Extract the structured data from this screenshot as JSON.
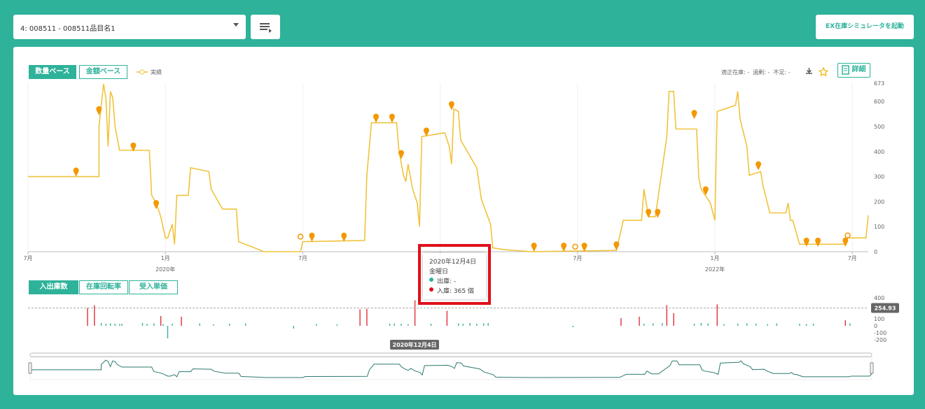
{
  "header": {
    "item_select": "4: 008511 - 008511品目名1",
    "simulator_button": "EX在庫シミュレータを起動"
  },
  "stock_chart": {
    "tabs": [
      "数量ベース",
      "金額ベース"
    ],
    "stats": "適正在庫: -  過剰: -  不足: -",
    "detail_button": "詳細",
    "chart_data": {
      "type": "line",
      "xlim": [
        0,
        36.7
      ],
      "xticks": [
        {
          "value": 0,
          "label": "7月"
        },
        {
          "value": 6,
          "label": "1月"
        },
        {
          "value": 12,
          "label": "7月"
        },
        {
          "value": 18,
          "label": "1月"
        },
        {
          "value": 24,
          "label": "7月"
        },
        {
          "value": 30,
          "label": "1月"
        },
        {
          "value": 36,
          "label": "7月"
        }
      ],
      "year_labels": [
        {
          "value": 6,
          "label": "2020年"
        },
        {
          "value": 30,
          "label": "2022年"
        }
      ],
      "ylim": [
        0,
        673
      ],
      "yticks": [
        0,
        100,
        200,
        300,
        400,
        500,
        600,
        673
      ],
      "series": [
        {
          "name": "実績",
          "color": "#f0c33c",
          "x": [
            0,
            3.1,
            3.1,
            3.3,
            3.4,
            3.5,
            3.6,
            3.7,
            3.8,
            4.0,
            5.3,
            5.4,
            5.6,
            5.8,
            6.0,
            6.1,
            6.3,
            6.4,
            6.5,
            7.0,
            7.1,
            7.9,
            8.0,
            8.5,
            9.1,
            9.2,
            9.9,
            10.3,
            11.9,
            12.0,
            14.7,
            14.8,
            15.0,
            16.1,
            16.2,
            16.4,
            16.5,
            16.6,
            16.8,
            17.0,
            17.1,
            17.2,
            18.2,
            18.4,
            18.5,
            18.6,
            18.8,
            18.9,
            19.6,
            19.8,
            20.2,
            20.3,
            20.8,
            22.0,
            25.7,
            25.9,
            26.0,
            26.8,
            26.9,
            27.1,
            27.4,
            27.9,
            28.0,
            28.2,
            28.3,
            29.2,
            29.3,
            29.4,
            29.8,
            30.0,
            30.1,
            30.9,
            31.0,
            31.1,
            31.4,
            31.5,
            32.0,
            32.1,
            32.4,
            33.1,
            33.2,
            33.3,
            33.4,
            33.7,
            35.7,
            35.8,
            36.6,
            36.7
          ],
          "values": [
            300,
            300,
            500,
            670,
            615,
            420,
            640,
            615,
            500,
            405,
            405,
            225,
            195,
            140,
            55,
            55,
            110,
            30,
            225,
            225,
            335,
            320,
            250,
            170,
            170,
            40,
            15,
            0,
            0,
            40,
            45,
            305,
            515,
            515,
            405,
            305,
            280,
            350,
            250,
            195,
            100,
            460,
            475,
            420,
            350,
            570,
            560,
            445,
            335,
            210,
            110,
            15,
            8,
            0,
            5,
            85,
            125,
            125,
            250,
            140,
            140,
            460,
            640,
            640,
            490,
            490,
            295,
            250,
            195,
            125,
            560,
            585,
            640,
            530,
            420,
            305,
            320,
            265,
            155,
            155,
            195,
            125,
            125,
            30,
            30,
            55,
            55,
            145
          ]
        }
      ],
      "pins": {
        "color": "#f39800",
        "x": [
          2.1,
          3.1,
          4.6,
          5.6,
          12.4,
          13.8,
          15.2,
          15.9,
          16.3,
          17.4,
          18.5,
          22.1,
          23.4,
          24.3,
          25.7,
          27.1,
          27.5,
          29.1,
          29.6,
          31.9,
          34.0,
          34.5,
          35.7
        ],
        "values": [
          300,
          545,
          400,
          170,
          40,
          40,
          515,
          515,
          370,
          460,
          565,
          0,
          0,
          0,
          5,
          135,
          135,
          530,
          225,
          325,
          20,
          20,
          20
        ]
      },
      "open_points": {
        "x": [
          11.9,
          23.9,
          35.8
        ],
        "values": [
          60,
          20,
          65
        ]
      }
    }
  },
  "flow_chart": {
    "tabs": [
      "入出庫数",
      "在庫回転率",
      "受入単価"
    ],
    "chart_data": {
      "type": "bar",
      "xlim": [
        0,
        36.7
      ],
      "ylim": [
        -200,
        400
      ],
      "yticks": [
        -200,
        -100,
        0,
        100,
        400
      ],
      "reference_line": 254.93,
      "x_pointer": "2020年12月4日",
      "series": [
        {
          "color": "#3cb39a",
          "x": [
            3.2,
            3.4,
            3.6,
            3.8,
            4.0,
            4.1,
            5.0,
            5.2,
            5.5,
            5.9,
            6.1,
            6.3,
            7.5,
            8.1,
            8.8,
            9.5,
            11.6,
            12.6,
            13.5,
            15.8,
            16.0,
            16.3,
            16.6,
            17.6,
            18.8,
            19.0,
            19.3,
            19.6,
            19.9,
            20.1,
            23.8,
            26.9,
            27.3,
            27.7,
            29.1,
            29.4,
            29.7,
            30.4,
            31.0,
            31.4,
            31.8,
            32.3,
            32.7,
            33.7,
            34.0,
            34.3,
            35.9
          ],
          "values": [
            40,
            30,
            35,
            30,
            25,
            30,
            40,
            30,
            35,
            25,
            -180,
            30,
            35,
            20,
            30,
            35,
            -40,
            25,
            20,
            30,
            35,
            30,
            25,
            30,
            35,
            30,
            40,
            30,
            35,
            40,
            -20,
            30,
            35,
            40,
            30,
            40,
            35,
            25,
            30,
            35,
            30,
            25,
            35,
            30,
            25,
            30,
            35
          ]
        },
        {
          "color": "#e0303a",
          "x": [
            2.6,
            2.9,
            5.8,
            6.7,
            14.5,
            14.8,
            16.9,
            18.3,
            25.9,
            26.7,
            27.9,
            28.2,
            30.1,
            35.7
          ],
          "values": [
            255,
            295,
            140,
            130,
            235,
            245,
            365,
            215,
            110,
            130,
            295,
            180,
            305,
            80
          ]
        }
      ]
    }
  },
  "tooltip": {
    "date": "2020年12月4日",
    "weekday": "金曜日",
    "rows": [
      "出庫: -",
      "入庫: 365 個"
    ]
  }
}
